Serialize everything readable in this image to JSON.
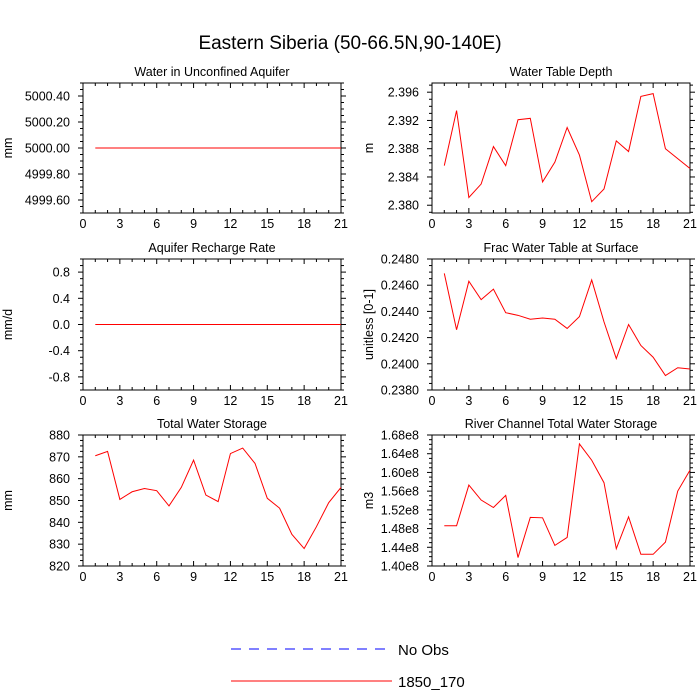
{
  "title": "Eastern Siberia (50-66.5N,90-140E)",
  "colors": {
    "model": "#ff0000",
    "obs": "#0000ff",
    "axis": "#000000"
  },
  "legend": [
    {
      "label": "No Obs",
      "style": "dashed",
      "color": "#0000ff"
    },
    {
      "label": "1850_170",
      "style": "solid",
      "color": "#ff0000"
    }
  ],
  "chart_data": [
    {
      "type": "line",
      "title": "Water in Unconfined Aquifer",
      "ylabel": "mm",
      "xlim": [
        0,
        21
      ],
      "ylim": [
        4999.5,
        5000.5
      ],
      "xticks": [
        0,
        3,
        6,
        9,
        12,
        15,
        18,
        21
      ],
      "xtick_labels": [
        "0",
        "3",
        "6",
        "9",
        "12",
        "15",
        "18",
        "21"
      ],
      "yticks": [
        4999.6,
        4999.8,
        5000.0,
        5000.2,
        5000.4
      ],
      "ytick_labels": [
        "4999.60",
        "4999.80",
        "5000.00",
        "5000.20",
        "5000.40"
      ],
      "x": [
        1,
        21
      ],
      "series": [
        {
          "name": "1850_170",
          "values": [
            5000.0,
            5000.0
          ]
        }
      ]
    },
    {
      "type": "line",
      "title": "Water Table Depth",
      "ylabel": "m",
      "xlim": [
        0,
        21
      ],
      "ylim": [
        2.3789,
        2.3973
      ],
      "xticks": [
        0,
        3,
        6,
        9,
        12,
        15,
        18,
        21
      ],
      "xtick_labels": [
        "0",
        "3",
        "6",
        "9",
        "12",
        "15",
        "18",
        "21"
      ],
      "yticks": [
        2.38,
        2.384,
        2.388,
        2.392,
        2.396
      ],
      "ytick_labels": [
        "2.380",
        "2.384",
        "2.388",
        "2.392",
        "2.396"
      ],
      "x": [
        1,
        2,
        3,
        4,
        5,
        6,
        7,
        8,
        9,
        10,
        11,
        12,
        13,
        14,
        15,
        16,
        17,
        18,
        19,
        20,
        21
      ],
      "series": [
        {
          "name": "1850_170",
          "values": [
            2.3856,
            2.3934,
            2.3811,
            2.383,
            2.3883,
            2.3856,
            2.3921,
            2.3923,
            2.3833,
            2.3861,
            2.391,
            2.3871,
            2.3805,
            2.3823,
            2.3891,
            2.3876,
            2.3954,
            2.3958,
            2.388,
            2.3866,
            2.3852
          ]
        }
      ]
    },
    {
      "type": "line",
      "title": "Aquifer Recharge Rate",
      "ylabel": "mm/d",
      "xlim": [
        0,
        21
      ],
      "ylim": [
        -1.0,
        1.0
      ],
      "xticks": [
        0,
        3,
        6,
        9,
        12,
        15,
        18,
        21
      ],
      "xtick_labels": [
        "0",
        "3",
        "6",
        "9",
        "12",
        "15",
        "18",
        "21"
      ],
      "yticks": [
        -0.8,
        -0.4,
        0.0,
        0.4,
        0.8
      ],
      "ytick_labels": [
        "-0.8",
        "-0.4",
        "0.0",
        "0.4",
        "0.8"
      ],
      "x": [
        1,
        21
      ],
      "series": [
        {
          "name": "1850_170",
          "values": [
            0.0,
            0.0
          ]
        }
      ]
    },
    {
      "type": "line",
      "title": "Frac Water Table at Surface",
      "ylabel": "unitless [0-1]",
      "xlim": [
        0,
        21
      ],
      "ylim": [
        0.238,
        0.248
      ],
      "xticks": [
        0,
        3,
        6,
        9,
        12,
        15,
        18,
        21
      ],
      "xtick_labels": [
        "0",
        "3",
        "6",
        "9",
        "12",
        "15",
        "18",
        "21"
      ],
      "yticks": [
        0.238,
        0.24,
        0.242,
        0.244,
        0.246,
        0.248
      ],
      "ytick_labels": [
        "0.2380",
        "0.2400",
        "0.2420",
        "0.2440",
        "0.2460",
        "0.2480"
      ],
      "x": [
        1,
        2,
        3,
        4,
        5,
        6,
        7,
        8,
        9,
        10,
        11,
        12,
        13,
        14,
        15,
        16,
        17,
        18,
        19,
        20,
        21
      ],
      "series": [
        {
          "name": "1850_170",
          "values": [
            0.2469,
            0.2426,
            0.2463,
            0.2449,
            0.2457,
            0.2439,
            0.2437,
            0.2434,
            0.2435,
            0.2434,
            0.2427,
            0.2436,
            0.2464,
            0.2432,
            0.2404,
            0.243,
            0.2414,
            0.2405,
            0.2391,
            0.2397,
            0.2396
          ]
        }
      ]
    },
    {
      "type": "line",
      "title": "Total Water Storage",
      "ylabel": "mm",
      "xlim": [
        0,
        21
      ],
      "ylim": [
        820,
        880
      ],
      "xticks": [
        0,
        3,
        6,
        9,
        12,
        15,
        18,
        21
      ],
      "xtick_labels": [
        "0",
        "3",
        "6",
        "9",
        "12",
        "15",
        "18",
        "21"
      ],
      "yticks": [
        820,
        830,
        840,
        850,
        860,
        870,
        880
      ],
      "ytick_labels": [
        "820",
        "830",
        "840",
        "850",
        "860",
        "870",
        "880"
      ],
      "x": [
        1,
        2,
        3,
        4,
        5,
        6,
        7,
        8,
        9,
        10,
        11,
        12,
        13,
        14,
        15,
        16,
        17,
        18,
        19,
        20,
        21
      ],
      "series": [
        {
          "name": "1850_170",
          "values": [
            870.5,
            872.5,
            850.5,
            854.0,
            855.5,
            854.5,
            847.5,
            856.0,
            868.5,
            852.5,
            849.5,
            871.5,
            874.0,
            867.0,
            851.0,
            846.5,
            834.5,
            828.0,
            838.0,
            849.0,
            856.0
          ]
        }
      ]
    },
    {
      "type": "line",
      "title": "River Channel Total Water Storage",
      "ylabel": "m3",
      "xlim": [
        0,
        21
      ],
      "ylim": [
        140000000.0,
        168000000.0
      ],
      "xticks": [
        0,
        3,
        6,
        9,
        12,
        15,
        18,
        21
      ],
      "xtick_labels": [
        "0",
        "3",
        "6",
        "9",
        "12",
        "15",
        "18",
        "21"
      ],
      "yticks": [
        140000000.0,
        144000000.0,
        148000000.0,
        152000000.0,
        156000000.0,
        160000000.0,
        164000000.0,
        168000000.0
      ],
      "ytick_labels": [
        "1.40e8",
        "1.44e8",
        "1.48e8",
        "1.52e8",
        "1.56e8",
        "1.60e8",
        "1.64e8",
        "1.68e8"
      ],
      "x": [
        1,
        2,
        3,
        4,
        5,
        6,
        7,
        8,
        9,
        10,
        11,
        12,
        13,
        14,
        15,
        16,
        17,
        18,
        19,
        20,
        21
      ],
      "series": [
        {
          "name": "1850_170",
          "values": [
            148600000.0,
            148600000.0,
            157300000.0,
            154100000.0,
            152500000.0,
            155100000.0,
            141800000.0,
            150400000.0,
            150300000.0,
            144400000.0,
            146100000.0,
            166100000.0,
            162600000.0,
            157800000.0,
            143700000.0,
            150500000.0,
            142500000.0,
            142500000.0,
            145100000.0,
            156000000.0,
            160500000.0
          ]
        }
      ]
    }
  ]
}
